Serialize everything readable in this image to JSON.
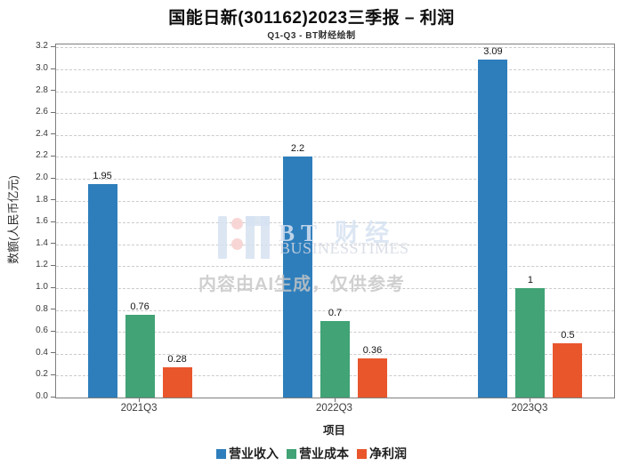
{
  "title": "国能日新(301162)2023三季报 – 利润",
  "subtitle": "Q1-Q3 - BT财经绘制",
  "chart_data": {
    "type": "bar",
    "categories": [
      "2021Q3",
      "2022Q3",
      "2023Q3"
    ],
    "series": [
      {
        "key": "revenue",
        "name": "营业收入",
        "color": "#2e7ebc",
        "values": [
          1.95,
          2.2,
          3.09
        ],
        "labels": [
          "1.95",
          "2.2",
          "3.09"
        ]
      },
      {
        "key": "cost",
        "name": "营业成本",
        "color": "#41a376",
        "values": [
          0.76,
          0.7,
          1.0
        ],
        "labels": [
          "0.76",
          "0.7",
          "1"
        ]
      },
      {
        "key": "net-profit",
        "name": "净利润",
        "color": "#e9562c",
        "values": [
          0.28,
          0.36,
          0.5
        ],
        "labels": [
          "0.28",
          "0.36",
          "0.5"
        ]
      }
    ],
    "xlabel": "项目",
    "ylabel": "数额(人民币亿元)",
    "ylim": [
      0,
      3.2
    ],
    "ytick_step": 0.2,
    "ytick_labels": [
      "0.0",
      "0.2",
      "0.4",
      "0.6",
      "0.8",
      "1.0",
      "1.2",
      "1.4",
      "1.6",
      "1.8",
      "2.0",
      "2.2",
      "2.4",
      "2.6",
      "2.8",
      "3.0",
      "3.2"
    ],
    "grid": "horizontal-dashed",
    "legend_position": "bottom"
  },
  "watermark": {
    "logo_text": "BT 财经",
    "logo_subtext": "BUSINESSTIMES",
    "disclaimer": "内容由AI生成，仅供参考"
  }
}
